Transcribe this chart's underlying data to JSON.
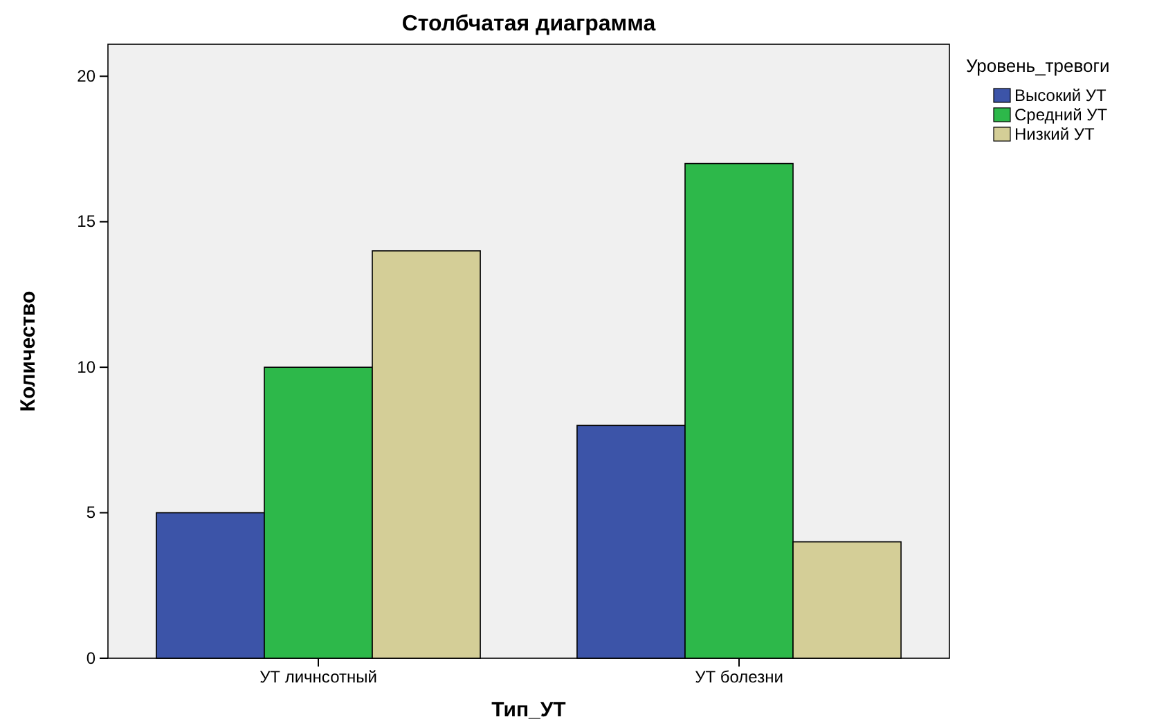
{
  "chart_data": {
    "type": "bar",
    "title": "Столбчатая диаграмма",
    "xlabel": "Тип_УТ",
    "ylabel": "Количество",
    "legend_title": "Уровень_тревоги",
    "categories": [
      "УТ личнсотный",
      "УТ болезни"
    ],
    "series": [
      {
        "name": "Высокий УТ",
        "color": "#3c54a8",
        "values": [
          5,
          8
        ]
      },
      {
        "name": "Средний УТ",
        "color": "#2db84a",
        "values": [
          10,
          17
        ]
      },
      {
        "name": "Низкий УТ",
        "color": "#d4ce97",
        "values": [
          14,
          4
        ]
      }
    ],
    "ylim": [
      0,
      21.1
    ],
    "yticks": [
      0,
      5,
      10,
      15,
      20
    ],
    "grid": false,
    "legend": "right"
  }
}
